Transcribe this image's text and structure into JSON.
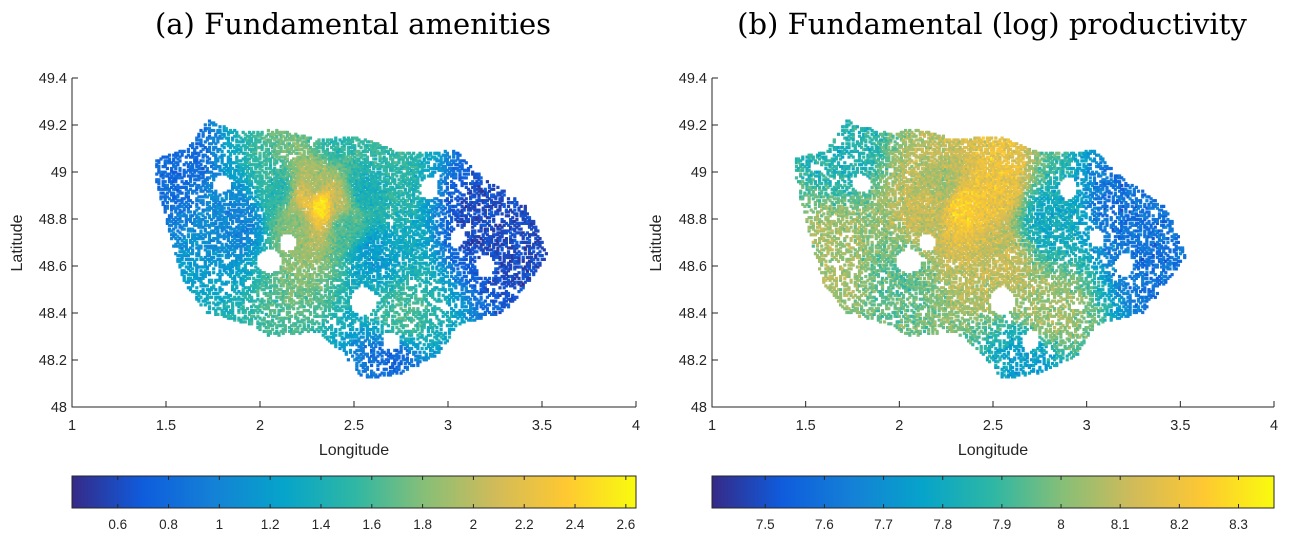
{
  "chart_data": [
    {
      "type": "scatter",
      "title": "(a) Fundamental amenities",
      "xlabel": "Longitude",
      "ylabel": "Latitude",
      "xlim": [
        1,
        4
      ],
      "ylim": [
        48,
        49.4
      ],
      "xticks": [
        "1",
        "1.5",
        "2",
        "2.5",
        "3",
        "3.5",
        "4"
      ],
      "yticks": [
        "48",
        "48.2",
        "48.4",
        "48.6",
        "48.8",
        "49",
        "49.2",
        "49.4"
      ],
      "grid": false,
      "colormap": "parula",
      "colorbar": {
        "location": "bottom",
        "range": [
          0.42,
          2.64
        ],
        "ticks": [
          "0.6",
          "0.8",
          "1",
          "1.2",
          "1.4",
          "1.6",
          "1.8",
          "2",
          "2.2",
          "2.4",
          "2.6"
        ]
      },
      "series": [
        {
          "note_points": "approximate cluster summaries of the dense point cloud",
          "points": [
            {
              "x": 2.33,
              "y": 48.86,
              "value": 2.6
            },
            {
              "x": 2.25,
              "y": 48.88,
              "value": 2.2
            },
            {
              "x": 2.42,
              "y": 48.86,
              "value": 2.0
            },
            {
              "x": 2.3,
              "y": 48.95,
              "value": 1.9
            },
            {
              "x": 2.2,
              "y": 48.8,
              "value": 1.8
            },
            {
              "x": 2.45,
              "y": 48.78,
              "value": 1.6
            },
            {
              "x": 2.1,
              "y": 48.92,
              "value": 1.5
            },
            {
              "x": 2.55,
              "y": 48.92,
              "value": 1.4
            },
            {
              "x": 2.4,
              "y": 49.13,
              "value": 1.5
            },
            {
              "x": 2.75,
              "y": 48.38,
              "value": 1.6
            },
            {
              "x": 2.6,
              "y": 48.65,
              "value": 1.2
            },
            {
              "x": 1.9,
              "y": 48.8,
              "value": 1.0
            },
            {
              "x": 1.55,
              "y": 49.05,
              "value": 0.8
            },
            {
              "x": 3.2,
              "y": 48.8,
              "value": 0.6
            },
            {
              "x": 3.4,
              "y": 48.65,
              "value": 0.6
            },
            {
              "x": 2.7,
              "y": 48.2,
              "value": 0.8
            }
          ]
        }
      ]
    },
    {
      "type": "scatter",
      "title": "(b) Fundamental (log) productivity",
      "xlabel": "Longitude",
      "ylabel": "Latitude",
      "xlim": [
        1,
        4
      ],
      "ylim": [
        48,
        49.4
      ],
      "xticks": [
        "1",
        "1.5",
        "2",
        "2.5",
        "3",
        "3.5",
        "4"
      ],
      "yticks": [
        "48",
        "48.2",
        "48.4",
        "48.6",
        "48.8",
        "49",
        "49.2",
        "49.4"
      ],
      "grid": false,
      "colormap": "parula",
      "colorbar": {
        "location": "bottom",
        "range": [
          7.41,
          8.36
        ],
        "ticks": [
          "7.5",
          "7.6",
          "7.7",
          "7.8",
          "7.9",
          "8",
          "8.1",
          "8.2",
          "8.3"
        ]
      },
      "series": [
        {
          "points": [
            {
              "x": 2.33,
              "y": 48.86,
              "value": 8.25
            },
            {
              "x": 2.52,
              "y": 48.95,
              "value": 8.2
            },
            {
              "x": 2.15,
              "y": 48.83,
              "value": 8.1
            },
            {
              "x": 2.25,
              "y": 48.93,
              "value": 8.05
            },
            {
              "x": 2.55,
              "y": 48.62,
              "value": 8.1
            },
            {
              "x": 2.8,
              "y": 48.4,
              "value": 8.05
            },
            {
              "x": 1.65,
              "y": 48.65,
              "value": 8.05
            },
            {
              "x": 2.0,
              "y": 48.55,
              "value": 7.95
            },
            {
              "x": 1.7,
              "y": 49.1,
              "value": 7.85
            },
            {
              "x": 2.8,
              "y": 48.8,
              "value": 7.8
            },
            {
              "x": 3.2,
              "y": 48.85,
              "value": 7.6
            },
            {
              "x": 3.4,
              "y": 48.6,
              "value": 7.6
            },
            {
              "x": 2.7,
              "y": 48.2,
              "value": 7.75
            }
          ]
        }
      ]
    }
  ]
}
